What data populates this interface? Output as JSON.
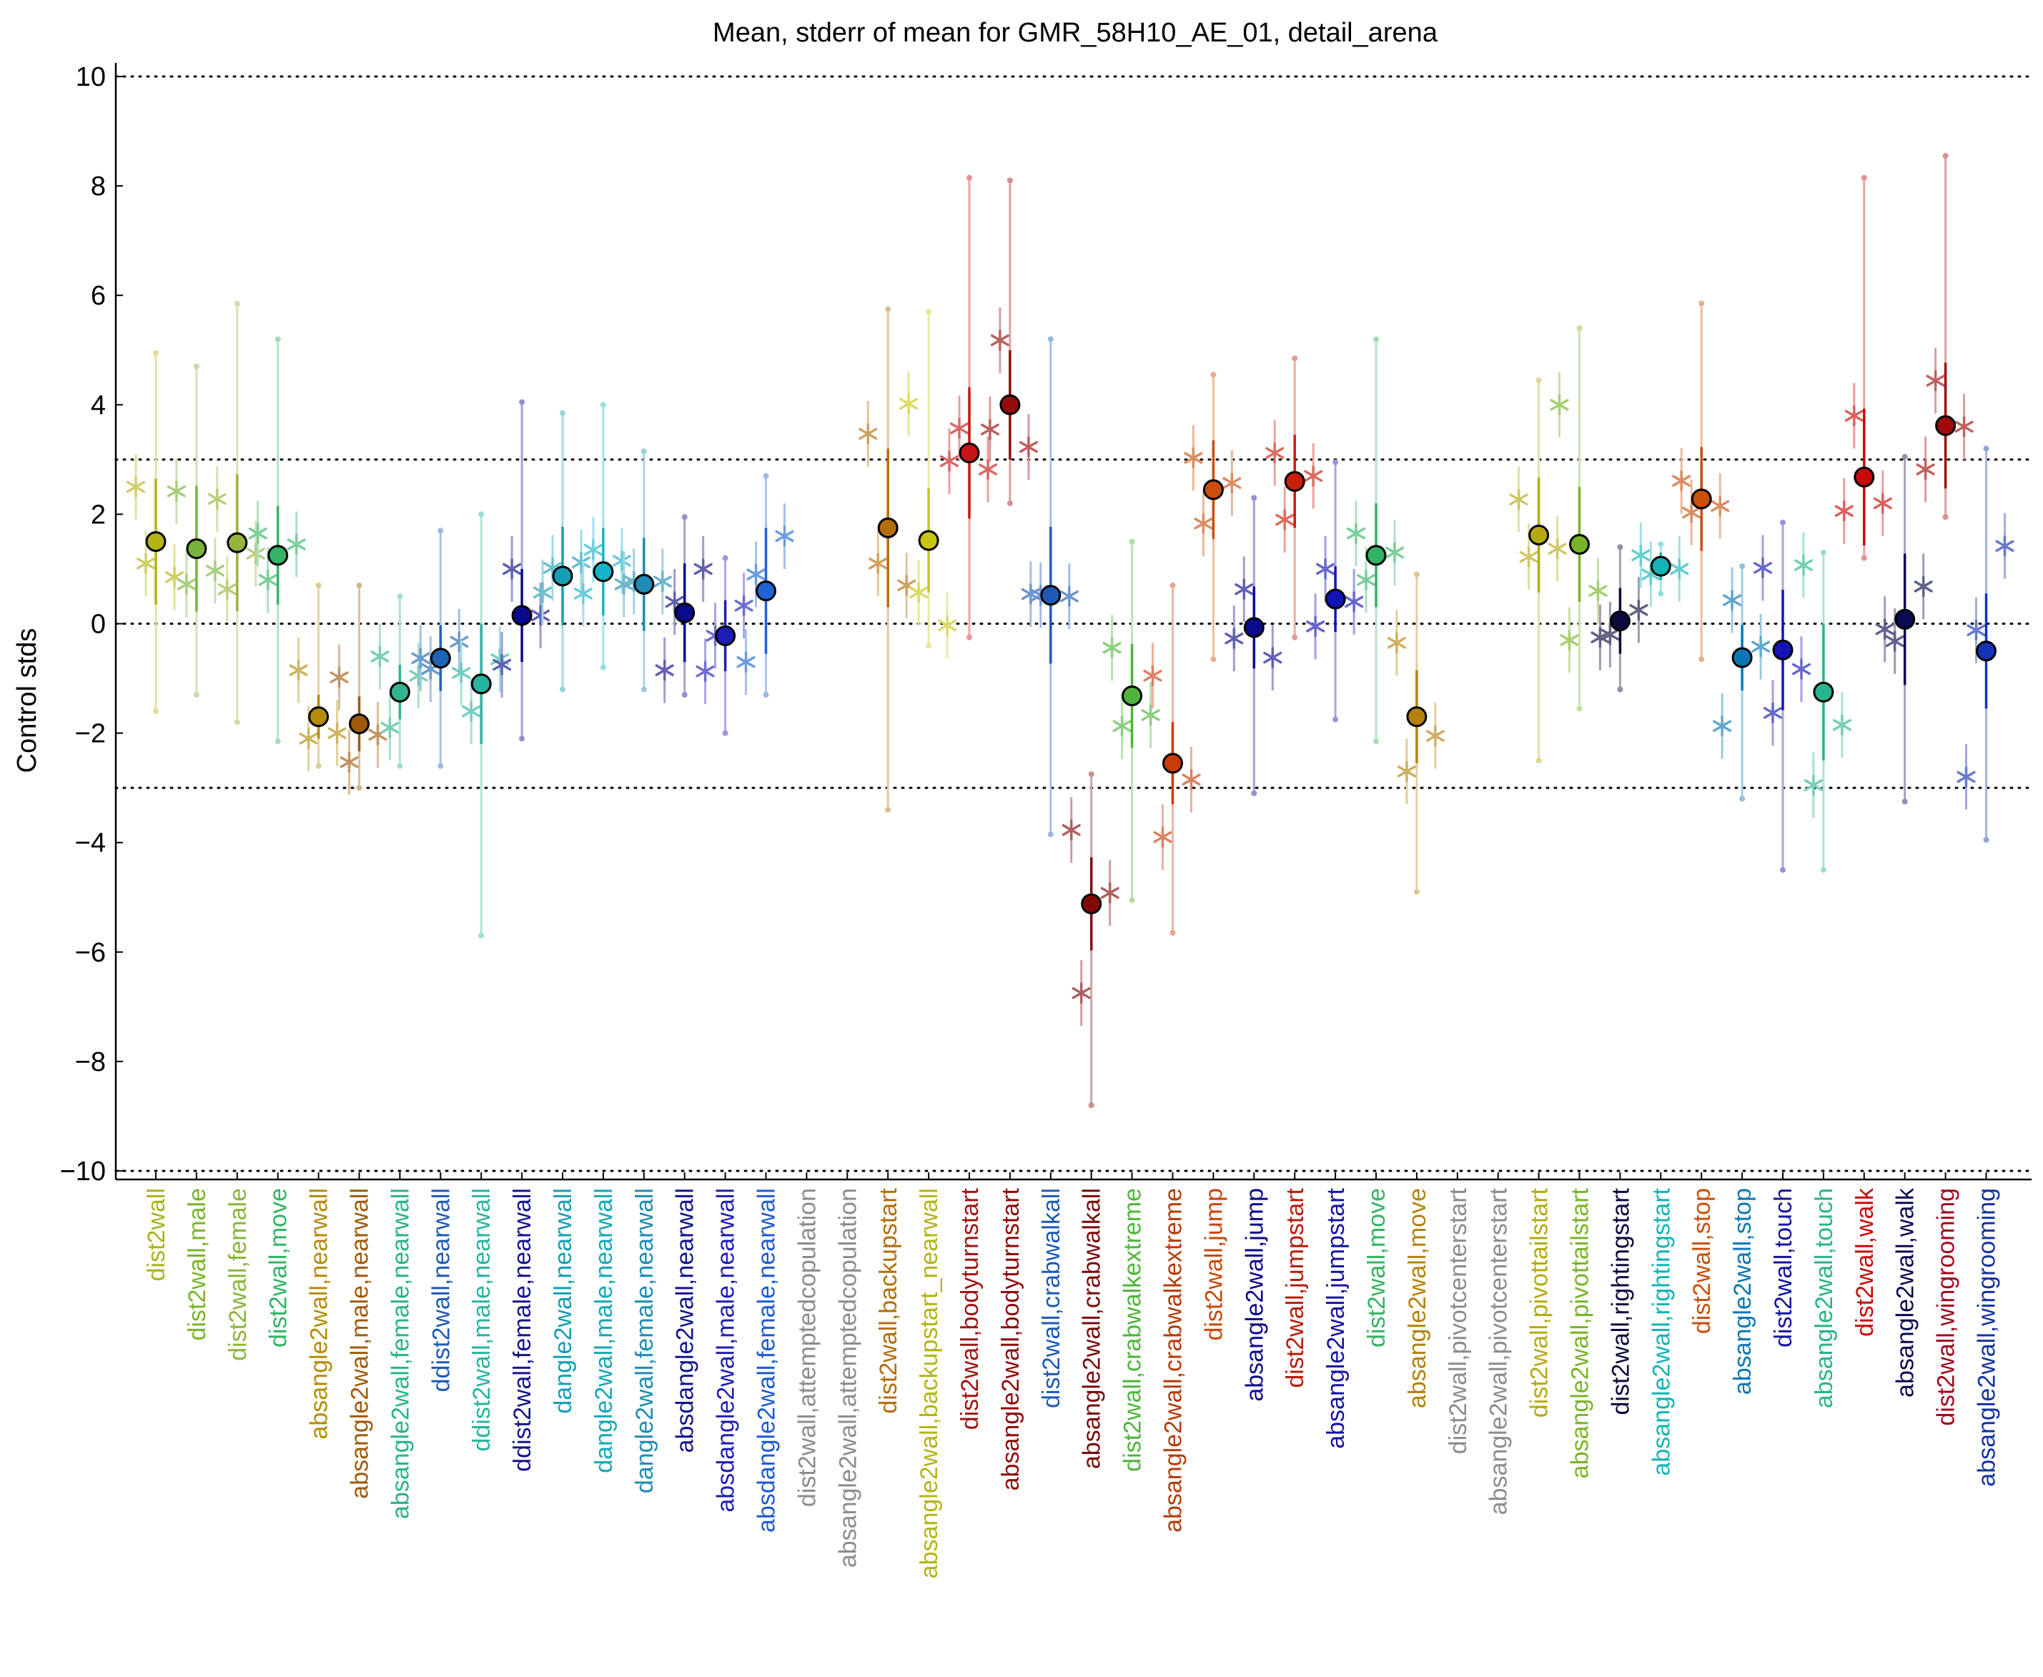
{
  "chart_data": {
    "type": "scatter",
    "title": "Mean, stderr of mean for GMR_58H10_AE_01, detail_arena",
    "xlabel": "",
    "ylabel": "Control stds",
    "ylim": [
      -10.3,
      10.3
    ],
    "yticks": [
      -10,
      -8,
      -6,
      -4,
      -2,
      0,
      2,
      4,
      6,
      8,
      10
    ],
    "ytick_labels": [
      "−10",
      "−8",
      "−6",
      "−4",
      "−2",
      "0",
      "2",
      "4",
      "6",
      "8",
      "10"
    ],
    "reference_lines": [
      -10,
      -3,
      0,
      3,
      10
    ],
    "grid": false,
    "legend": "none",
    "categories": [
      "dist2wall",
      "dist2wall,male",
      "dist2wall,female",
      "dist2wall,move",
      "absangle2wall,nearwall",
      "absangle2wall,male,nearwall",
      "absangle2wall,female,nearwall",
      "ddist2wall,nearwall",
      "ddist2wall,male,nearwall",
      "ddist2wall,female,nearwall",
      "dangle2wall,nearwall",
      "dangle2wall,male,nearwall",
      "dangle2wall,female,nearwall",
      "absdangle2wall,nearwall",
      "absdangle2wall,male,nearwall",
      "absdangle2wall,female,nearwall",
      "dist2wall,attemptedcopulation",
      "absangle2wall,attemptedcopulation",
      "dist2wall,backupstart",
      "absangle2wall,backupstart_nearwall",
      "dist2wall,bodyturnstart",
      "absangle2wall,bodyturnstart",
      "dist2wall,crabwalkall",
      "absangle2wall,crabwalkall",
      "dist2wall,crabwalkextreme",
      "absangle2wall,crabwalkextreme",
      "dist2wall,jump",
      "absangle2wall,jump",
      "dist2wall,jumpstart",
      "absangle2wall,jumpstart",
      "dist2wall,move",
      "absangle2wall,move",
      "dist2wall,pivotcenterstart",
      "absangle2wall,pivotcenterstart",
      "dist2wall,pivottailstart",
      "absangle2wall,pivottailstart",
      "dist2wall,rightingstart",
      "absangle2wall,rightingstart",
      "dist2wall,stop",
      "absangle2wall,stop",
      "dist2wall,touch",
      "absangle2wall,touch",
      "dist2wall,walk",
      "absangle2wall,walk",
      "dist2wall,wingrooming",
      "absangle2wall,wingrooming"
    ],
    "label_colors": [
      "#a8b41e",
      "#7ab42a",
      "#8cb43c",
      "#32b464",
      "#b48c0a",
      "#a05a0a",
      "#28b48c",
      "#1e5ab4",
      "#28b4a0",
      "#14148c",
      "#14a0b4",
      "#14a8b4",
      "#1e8cb4",
      "#14148c",
      "#1e1eb4",
      "#1e5ad2",
      "#8c8c8c",
      "#8c8c8c",
      "#b46e0a",
      "#b4b414",
      "#a01414",
      "#8c0a0a",
      "#1e5ab4",
      "#780a0a",
      "#50b43c",
      "#b43c0a",
      "#c8460a",
      "#0a0a8c",
      "#b41e0a",
      "#1414a0",
      "#32b464",
      "#b4820a",
      "#8c8c8c",
      "#8c8c8c",
      "#b4aa14",
      "#7ab428",
      "#0a0a3c",
      "#14b4b4",
      "#c8500a",
      "#0a78b4",
      "#1414a0",
      "#28b48c",
      "#c80a0a",
      "#0a0a50",
      "#a00a1e",
      "#1432a0"
    ],
    "means": [
      1.5,
      1.37,
      1.48,
      1.25,
      -1.7,
      -1.83,
      -1.25,
      -0.63,
      -1.1,
      0.15,
      0.87,
      0.95,
      0.72,
      0.2,
      -0.22,
      0.6,
      null,
      null,
      1.75,
      1.52,
      3.12,
      4.0,
      0.52,
      -5.12,
      -1.32,
      -2.55,
      2.45,
      -0.07,
      2.6,
      0.45,
      1.25,
      -1.7,
      null,
      null,
      1.62,
      1.45,
      0.05,
      1.05,
      2.28,
      -0.62,
      -0.48,
      -1.25,
      2.68,
      0.08,
      3.62,
      -0.5
    ],
    "sem": [
      1.15,
      1.15,
      1.25,
      0.9,
      0.4,
      0.5,
      0.5,
      0.6,
      1.1,
      0.85,
      0.9,
      0.8,
      0.85,
      0.9,
      0.65,
      1.15,
      null,
      null,
      1.45,
      0.95,
      1.2,
      1.0,
      1.25,
      0.85,
      0.95,
      0.75,
      0.9,
      0.75,
      0.85,
      0.6,
      0.95,
      0.85,
      null,
      null,
      1.05,
      1.05,
      0.6,
      0.25,
      0.95,
      0.6,
      1.1,
      1.25,
      1.25,
      1.2,
      1.15,
      1.05
    ],
    "marker_colors": [
      "#b4b414",
      "#78b43c",
      "#96b43c",
      "#32b464",
      "#b48c0a",
      "#a05a0a",
      "#32b48c",
      "#1e64b4",
      "#28b4a0",
      "#0a0a8c",
      "#14a0b4",
      "#14b4c8",
      "#1e8cb4",
      "#0a0a8c",
      "#1e1eb4",
      "#1e64d2",
      null,
      null,
      "#b46e0a",
      "#c8c814",
      "#c81414",
      "#960a0a",
      "#1e5ab4",
      "#820a0a",
      "#50b43c",
      "#c83c0a",
      "#c8500a",
      "#0a0a8c",
      "#c81e0a",
      "#1414b4",
      "#32b464",
      "#b4820a",
      null,
      null,
      "#b4aa14",
      "#78b428",
      "#0a0a3c",
      "#14b4b4",
      "#c8500a",
      "#0a78b4",
      "#1414b4",
      "#28b48c",
      "#c80a0a",
      "#0a0a50",
      "#a00a0a",
      "#1432b4"
    ],
    "star_offsets": [
      [
        1.0,
        -0.4,
        -0.65
      ],
      [
        1.05,
        -0.65,
        -0.4
      ],
      [
        0.8,
        -0.85,
        -0.2
      ],
      [
        0.4,
        -0.45,
        0.2
      ],
      [
        0.85,
        -0.4,
        -0.3
      ],
      [
        0.85,
        -0.7,
        -0.2
      ],
      [
        0.65,
        -0.65,
        0.3
      ],
      [
        0.0,
        -0.2,
        0.3
      ],
      [
        0.2,
        -0.5,
        0.45
      ],
      [
        -0.9,
        0.85,
        0.0
      ],
      [
        -0.3,
        0.15,
        0.25
      ],
      [
        -0.4,
        0.4,
        0.2
      ],
      [
        0.0,
        0.05,
        0.05
      ],
      [
        -1.05,
        0.2,
        0.8
      ],
      [
        -0.65,
        0.0,
        0.55
      ],
      [
        -1.3,
        0.3,
        1.0
      ],
      null,
      null,
      [
        1.72,
        -0.65,
        -1.05
      ],
      [
        2.5,
        -0.95,
        -1.55
      ],
      [
        -0.15,
        0.45,
        -0.3
      ],
      [
        -0.45,
        1.18,
        -0.77
      ],
      [
        0.02,
        0.0,
        -0.02
      ],
      [
        1.35,
        -1.63,
        0.2
      ],
      [
        0.88,
        -0.55,
        -0.35
      ],
      [
        1.6,
        -1.35,
        -0.3
      ],
      [
        0.58,
        -0.62,
        0.12
      ],
      [
        -0.2,
        0.7,
        -0.55
      ],
      [
        0.52,
        -0.7,
        0.1
      ],
      [
        -0.5,
        0.55,
        -0.05
      ],
      [
        0.4,
        -0.45,
        0.05
      ],
      [
        1.35,
        -1.0,
        -0.35
      ],
      null,
      null,
      [
        0.65,
        -0.4,
        -0.25
      ],
      [
        2.55,
        -1.75,
        -0.85
      ],
      [
        -0.3,
        -0.25,
        0.2
      ],
      [
        0.2,
        -0.15,
        -0.05
      ],
      [
        0.33,
        -0.25,
        -0.13
      ],
      [
        -1.25,
        1.05,
        0.2
      ],
      [
        1.5,
        -1.15,
        -0.35
      ],
      [
        2.32,
        -1.7,
        -0.6
      ],
      [
        -0.62,
        1.12,
        -0.48
      ],
      [
        -0.18,
        -0.4,
        0.6
      ],
      [
        -0.8,
        0.82,
        -0.02
      ],
      [
        -2.3,
        0.38,
        1.92
      ]
    ],
    "range_extents": [
      [
        4.95,
        -1.6
      ],
      [
        4.7,
        -1.3
      ],
      [
        5.85,
        -1.8
      ],
      [
        5.2,
        -2.15
      ],
      [
        0.7,
        -2.6
      ],
      [
        0.7,
        -3.0
      ],
      [
        0.5,
        -2.6
      ],
      [
        1.7,
        -2.6
      ],
      [
        2.0,
        -5.7
      ],
      [
        4.05,
        -2.1
      ],
      [
        3.85,
        -1.2
      ],
      [
        4.0,
        -0.8
      ],
      [
        3.15,
        -1.2
      ],
      [
        1.95,
        -1.3
      ],
      [
        1.2,
        -2.0
      ],
      [
        2.7,
        -1.3
      ],
      null,
      null,
      [
        5.75,
        -3.4
      ],
      [
        5.7,
        -0.4
      ],
      [
        8.15,
        -0.25
      ],
      [
        8.1,
        2.2
      ],
      [
        5.2,
        -3.85
      ],
      [
        -2.75,
        -8.8
      ],
      [
        1.5,
        -5.05
      ],
      [
        0.7,
        -5.65
      ],
      [
        4.55,
        -0.65
      ],
      [
        2.3,
        -3.1
      ],
      [
        4.85,
        -0.25
      ],
      [
        2.95,
        -1.75
      ],
      [
        5.2,
        -2.15
      ],
      [
        0.9,
        -4.9
      ],
      null,
      null,
      [
        4.45,
        -2.5
      ],
      [
        5.4,
        -1.55
      ],
      [
        1.4,
        -1.2
      ],
      [
        1.45,
        0.55
      ],
      [
        5.85,
        -0.65
      ],
      [
        1.05,
        -3.2
      ],
      [
        1.85,
        -4.5
      ],
      [
        1.3,
        -4.5
      ],
      [
        8.15,
        1.2
      ],
      [
        3.05,
        -3.25
      ],
      [
        8.55,
        1.95
      ],
      [
        3.2,
        -3.95
      ]
    ]
  }
}
